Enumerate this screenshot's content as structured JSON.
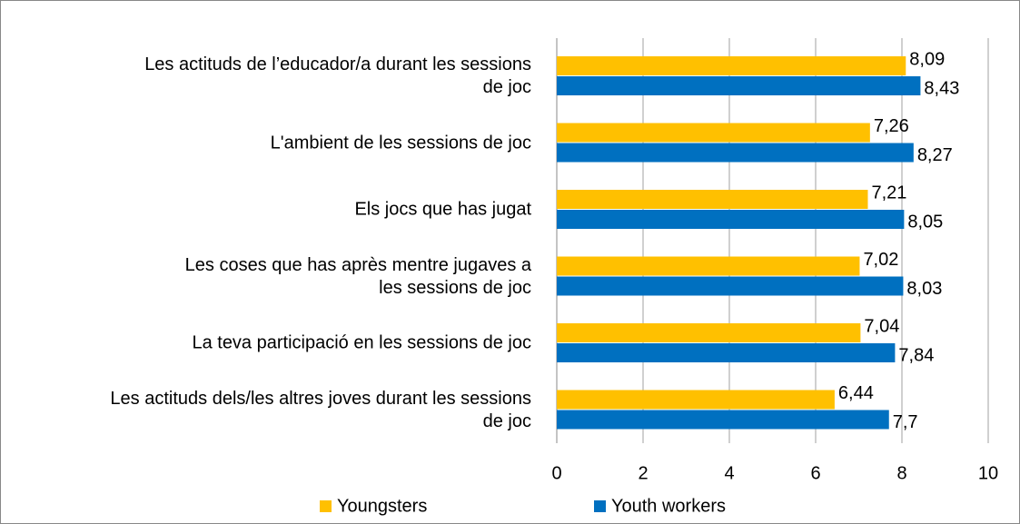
{
  "chart_data": {
    "type": "bar",
    "orientation": "horizontal",
    "categories": [
      "Les actituds de l’educador/a durant les sessions de joc",
      "L'ambient de les sessions de joc",
      "Els jocs que has jugat",
      "Les coses que has après mentre jugaves a les sessions de joc",
      "La teva participació en les sessions de joc",
      "Les actituds dels/les altres joves durant les sessions de joc"
    ],
    "series": [
      {
        "name": "Youngsters",
        "color": "#ffc000",
        "values": [
          8.09,
          7.26,
          7.21,
          7.02,
          7.04,
          6.44
        ],
        "value_labels": [
          "8,09",
          "7,26",
          "7,21",
          "7,02",
          "7,04",
          "6,44"
        ]
      },
      {
        "name": "Youth workers",
        "color": "#0070c0",
        "values": [
          8.43,
          8.27,
          8.05,
          8.03,
          7.84,
          7.7
        ],
        "value_labels": [
          "8,43",
          "8,27",
          "8,05",
          "8,03",
          "7,84",
          "7,7"
        ]
      }
    ],
    "xlim": [
      0,
      10
    ],
    "xticks": [
      0,
      2,
      4,
      6,
      8,
      10
    ],
    "grid": true,
    "legend": "bottom"
  }
}
